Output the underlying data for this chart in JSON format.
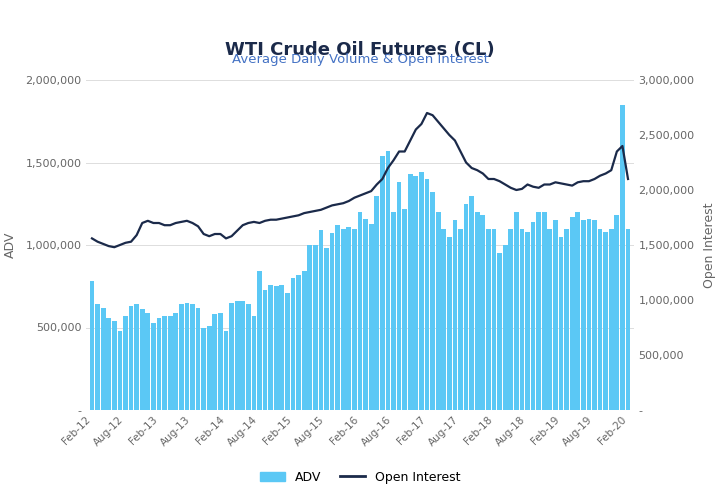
{
  "title": "WTI Crude Oil Futures (CL)",
  "subtitle": "Average Daily Volume & Open Interest",
  "title_color": "#1b2a4a",
  "subtitle_color": "#4472c4",
  "bar_color": "#5bc8f5",
  "line_color": "#1b2a4a",
  "background_color": "#ffffff",
  "ylabel_left": "ADV",
  "ylabel_right": "Open Interest",
  "tick_labels": [
    "Feb-12",
    "Aug-12",
    "Feb-13",
    "Aug-13",
    "Feb-14",
    "Aug-14",
    "Feb-15",
    "Aug-15",
    "Feb-16",
    "Aug-16",
    "Feb-17",
    "Aug-17",
    "Feb-18",
    "Aug-18",
    "Feb-19",
    "Aug-19",
    "Feb-20"
  ],
  "adv_values": [
    780000,
    640000,
    620000,
    560000,
    540000,
    480000,
    570000,
    630000,
    640000,
    610000,
    590000,
    530000,
    560000,
    570000,
    570000,
    590000,
    640000,
    650000,
    640000,
    620000,
    500000,
    510000,
    580000,
    590000,
    480000,
    650000,
    660000,
    660000,
    640000,
    570000,
    840000,
    730000,
    760000,
    750000,
    760000,
    710000,
    800000,
    820000,
    840000,
    1000000,
    1000000,
    1090000,
    980000,
    1070000,
    1120000,
    1100000,
    1110000,
    1100000,
    1200000,
    1160000,
    1130000,
    1300000,
    1540000,
    1570000,
    1200000,
    1380000,
    1220000,
    1430000,
    1420000,
    1440000,
    1400000,
    1320000,
    1200000,
    1100000,
    1050000,
    1150000,
    1100000,
    1250000,
    1300000,
    1200000,
    1180000,
    1100000,
    1100000,
    950000,
    1000000,
    1100000,
    1200000,
    1100000,
    1080000,
    1140000,
    1200000,
    1200000,
    1100000,
    1150000,
    1050000,
    1100000,
    1170000,
    1200000,
    1150000,
    1160000,
    1150000,
    1100000,
    1080000,
    1100000,
    1180000,
    1850000,
    1100000
  ],
  "open_interest": [
    1560000,
    1530000,
    1510000,
    1490000,
    1480000,
    1500000,
    1520000,
    1530000,
    1590000,
    1700000,
    1720000,
    1700000,
    1700000,
    1680000,
    1680000,
    1700000,
    1710000,
    1720000,
    1700000,
    1670000,
    1600000,
    1580000,
    1600000,
    1600000,
    1560000,
    1580000,
    1630000,
    1680000,
    1700000,
    1710000,
    1700000,
    1720000,
    1730000,
    1730000,
    1740000,
    1750000,
    1760000,
    1770000,
    1790000,
    1800000,
    1810000,
    1820000,
    1840000,
    1860000,
    1870000,
    1880000,
    1900000,
    1930000,
    1950000,
    1970000,
    1990000,
    2050000,
    2100000,
    2200000,
    2270000,
    2350000,
    2350000,
    2450000,
    2550000,
    2600000,
    2700000,
    2680000,
    2620000,
    2560000,
    2500000,
    2450000,
    2350000,
    2250000,
    2200000,
    2180000,
    2150000,
    2100000,
    2100000,
    2080000,
    2050000,
    2020000,
    2000000,
    2010000,
    2050000,
    2030000,
    2020000,
    2050000,
    2050000,
    2070000,
    2060000,
    2050000,
    2040000,
    2070000,
    2080000,
    2080000,
    2100000,
    2130000,
    2150000,
    2180000,
    2350000,
    2400000,
    2100000
  ],
  "ylim_left": [
    0,
    2000000
  ],
  "ylim_right": [
    0,
    3000000
  ],
  "yticks_left": [
    0,
    500000,
    1000000,
    1500000,
    2000000
  ],
  "yticks_right": [
    0,
    500000,
    1000000,
    1500000,
    2000000,
    2500000,
    3000000
  ],
  "ytick_labels_left": [
    "-",
    "500,000",
    "1,000,000",
    "1,500,000",
    "2,000,000"
  ],
  "ytick_labels_right": [
    "-",
    "500,000",
    "1,000,000",
    "1,500,000",
    "2,000,000",
    "2,500,000",
    "3,000,000"
  ],
  "tick_indices": [
    0,
    6,
    12,
    18,
    24,
    30,
    36,
    42,
    48,
    54,
    60,
    66,
    72,
    78,
    84,
    90,
    96
  ]
}
